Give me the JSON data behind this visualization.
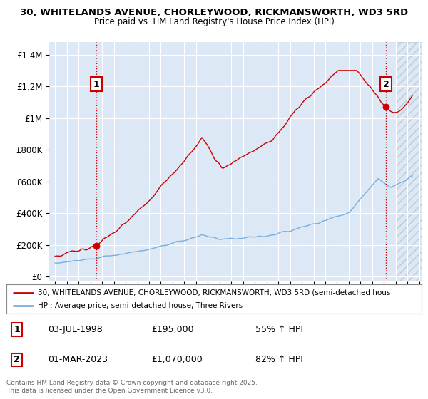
{
  "title_line1": "30, WHITELANDS AVENUE, CHORLEYWOOD, RICKMANSWORTH, WD3 5RD",
  "title_line2": "Price paid vs. HM Land Registry's House Price Index (HPI)",
  "background_color": "#ffffff",
  "plot_bg_color": "#dce8f5",
  "grid_color": "#ffffff",
  "red_color": "#cc0000",
  "blue_color": "#7aaedc",
  "annotation1_date": "03-JUL-1998",
  "annotation1_price": 195000,
  "annotation1_label": "55% ↑ HPI",
  "annotation2_date": "01-MAR-2023",
  "annotation2_price": 1070000,
  "annotation2_label": "82% ↑ HPI",
  "legend_line1": "30, WHITELANDS AVENUE, CHORLEYWOOD, RICKMANSWORTH, WD3 5RD (semi-detached hous",
  "legend_line2": "HPI: Average price, semi-detached house, Three Rivers",
  "footer": "Contains HM Land Registry data © Crown copyright and database right 2025.\nThis data is licensed under the Open Government Licence v3.0.",
  "yticks": [
    0,
    200000,
    400000,
    600000,
    800000,
    1000000,
    1200000,
    1400000
  ],
  "ytick_labels": [
    "£0",
    "£200K",
    "£400K",
    "£600K",
    "£800K",
    "£1M",
    "£1.2M",
    "£1.4M"
  ],
  "xlim_start": 1994.5,
  "xlim_end": 2026.2,
  "ylim_min": -30000,
  "ylim_max": 1480000,
  "marker1_x": 1998.5,
  "marker1_y": 195000,
  "marker2_x": 2023.17,
  "marker2_y": 1070000,
  "vline1_x": 1998.5,
  "vline2_x": 2023.17,
  "hatch_start": 2024.0
}
